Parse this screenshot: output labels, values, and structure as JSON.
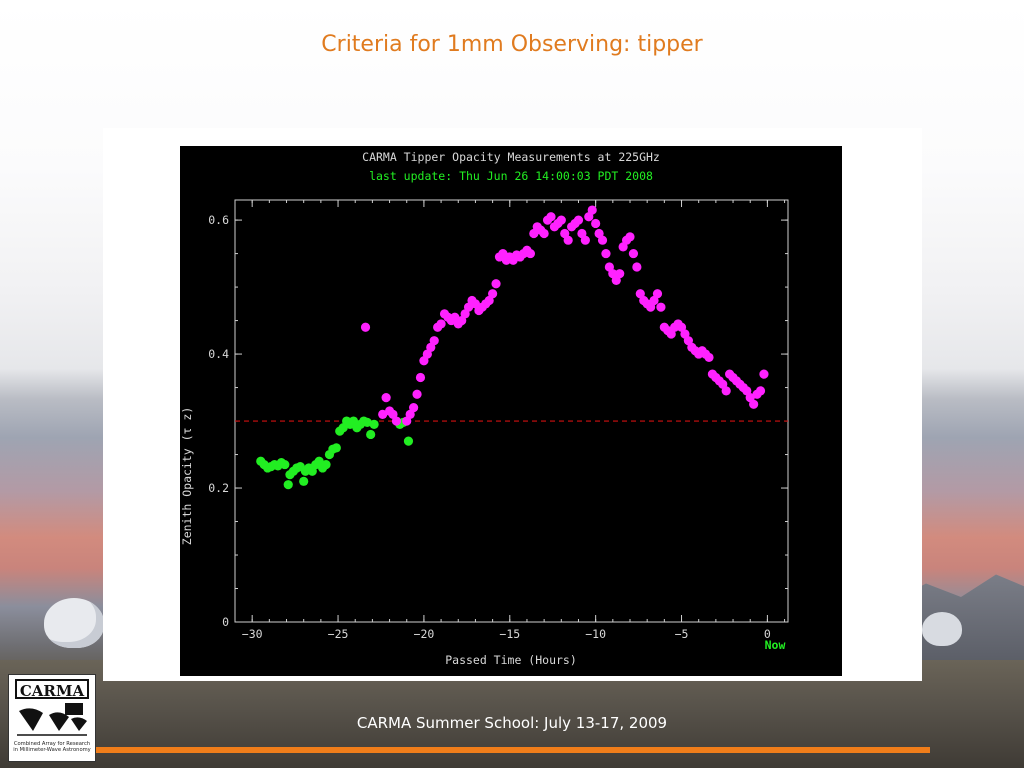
{
  "slide": {
    "title": "Criteria for 1mm Observing: tipper",
    "footer": "CARMA Summer School: July 13-17, 2009",
    "logo": {
      "name": "CARMA",
      "caption": "Combined Array for Research in Millimeter-Wave Astronomy"
    },
    "colors": {
      "title": "#e07b1f",
      "footer_line": "#f07d1a"
    }
  },
  "chart_data": {
    "type": "scatter",
    "title": "CARMA Tipper Opacity Measurements at 225GHz",
    "subtitle": "last update: Thu Jun 26 14:00:03 PDT 2008",
    "xlabel": "Passed Time (Hours)",
    "ylabel": "Zenith Opacity (τ z)",
    "xlim": [
      -31,
      1.2
    ],
    "ylim": [
      0,
      0.63
    ],
    "xticks": [
      -30,
      -25,
      -20,
      -15,
      -10,
      -5,
      0
    ],
    "xtick_labels": [
      "−30",
      "−25",
      "−20",
      "−15",
      "−10",
      "−5",
      "0"
    ],
    "yticks": [
      0,
      0.2,
      0.4,
      0.6
    ],
    "ytick_labels": [
      "0",
      "0.2",
      "0.4",
      "0.6"
    ],
    "now_label": "Now",
    "threshold": {
      "value": 0.3,
      "color": "#d01010",
      "style": "dashed"
    },
    "background": "#000000",
    "series": [
      {
        "color": "#22ee22",
        "points": [
          [
            -29.5,
            0.24
          ],
          [
            -29.3,
            0.235
          ],
          [
            -29.1,
            0.23
          ],
          [
            -28.9,
            0.232
          ],
          [
            -28.7,
            0.235
          ],
          [
            -28.5,
            0.233
          ],
          [
            -28.3,
            0.238
          ],
          [
            -28.1,
            0.235
          ],
          [
            -27.9,
            0.205
          ],
          [
            -27.8,
            0.22
          ],
          [
            -27.6,
            0.225
          ],
          [
            -27.4,
            0.23
          ],
          [
            -27.2,
            0.232
          ],
          [
            -27.0,
            0.21
          ],
          [
            -26.9,
            0.225
          ],
          [
            -26.7,
            0.23
          ],
          [
            -26.5,
            0.225
          ],
          [
            -26.3,
            0.235
          ],
          [
            -26.1,
            0.24
          ],
          [
            -25.9,
            0.23
          ],
          [
            -25.7,
            0.235
          ],
          [
            -25.5,
            0.25
          ],
          [
            -25.3,
            0.258
          ],
          [
            -25.1,
            0.26
          ],
          [
            -24.9,
            0.285
          ],
          [
            -24.7,
            0.29
          ],
          [
            -24.5,
            0.3
          ],
          [
            -24.3,
            0.295
          ],
          [
            -24.1,
            0.3
          ],
          [
            -23.9,
            0.29
          ],
          [
            -23.7,
            0.295
          ],
          [
            -23.5,
            0.3
          ],
          [
            -23.3,
            0.298
          ],
          [
            -23.1,
            0.28
          ],
          [
            -22.9,
            0.295
          ],
          [
            -21.4,
            0.295
          ],
          [
            -21.2,
            0.298
          ],
          [
            -20.9,
            0.27
          ]
        ]
      },
      {
        "color": "#ff22ff",
        "points": [
          [
            -23.4,
            0.44
          ],
          [
            -22.4,
            0.31
          ],
          [
            -22.2,
            0.335
          ],
          [
            -22.0,
            0.315
          ],
          [
            -21.8,
            0.31
          ],
          [
            -21.6,
            0.3
          ],
          [
            -21.0,
            0.3
          ],
          [
            -20.8,
            0.31
          ],
          [
            -20.6,
            0.32
          ],
          [
            -20.4,
            0.34
          ],
          [
            -20.2,
            0.365
          ],
          [
            -20.0,
            0.39
          ],
          [
            -19.8,
            0.4
          ],
          [
            -19.6,
            0.41
          ],
          [
            -19.4,
            0.42
          ],
          [
            -19.2,
            0.44
          ],
          [
            -19.0,
            0.445
          ],
          [
            -18.8,
            0.46
          ],
          [
            -18.6,
            0.455
          ],
          [
            -18.4,
            0.45
          ],
          [
            -18.2,
            0.455
          ],
          [
            -18.0,
            0.445
          ],
          [
            -17.8,
            0.45
          ],
          [
            -17.6,
            0.46
          ],
          [
            -17.4,
            0.47
          ],
          [
            -17.2,
            0.48
          ],
          [
            -17.0,
            0.475
          ],
          [
            -16.8,
            0.465
          ],
          [
            -16.6,
            0.47
          ],
          [
            -16.4,
            0.475
          ],
          [
            -16.2,
            0.48
          ],
          [
            -16.0,
            0.49
          ],
          [
            -15.8,
            0.505
          ],
          [
            -15.6,
            0.545
          ],
          [
            -15.4,
            0.55
          ],
          [
            -15.2,
            0.54
          ],
          [
            -15.0,
            0.545
          ],
          [
            -14.8,
            0.54
          ],
          [
            -14.6,
            0.548
          ],
          [
            -14.4,
            0.545
          ],
          [
            -14.2,
            0.55
          ],
          [
            -14.0,
            0.555
          ],
          [
            -13.8,
            0.55
          ],
          [
            -13.6,
            0.58
          ],
          [
            -13.4,
            0.59
          ],
          [
            -13.2,
            0.585
          ],
          [
            -13.0,
            0.58
          ],
          [
            -12.8,
            0.6
          ],
          [
            -12.6,
            0.605
          ],
          [
            -12.4,
            0.59
          ],
          [
            -12.2,
            0.595
          ],
          [
            -12.0,
            0.6
          ],
          [
            -11.8,
            0.58
          ],
          [
            -11.6,
            0.57
          ],
          [
            -11.4,
            0.59
          ],
          [
            -11.2,
            0.595
          ],
          [
            -11.0,
            0.6
          ],
          [
            -10.8,
            0.58
          ],
          [
            -10.6,
            0.57
          ],
          [
            -10.4,
            0.605
          ],
          [
            -10.2,
            0.615
          ],
          [
            -10.0,
            0.595
          ],
          [
            -9.8,
            0.58
          ],
          [
            -9.6,
            0.57
          ],
          [
            -9.4,
            0.55
          ],
          [
            -9.2,
            0.53
          ],
          [
            -9.0,
            0.52
          ],
          [
            -8.8,
            0.51
          ],
          [
            -8.6,
            0.52
          ],
          [
            -8.4,
            0.56
          ],
          [
            -8.2,
            0.57
          ],
          [
            -8.0,
            0.575
          ],
          [
            -7.8,
            0.55
          ],
          [
            -7.6,
            0.53
          ],
          [
            -7.4,
            0.49
          ],
          [
            -7.2,
            0.48
          ],
          [
            -7.0,
            0.475
          ],
          [
            -6.8,
            0.47
          ],
          [
            -6.6,
            0.48
          ],
          [
            -6.4,
            0.49
          ],
          [
            -6.2,
            0.47
          ],
          [
            -6.0,
            0.44
          ],
          [
            -5.8,
            0.435
          ],
          [
            -5.6,
            0.43
          ],
          [
            -5.4,
            0.44
          ],
          [
            -5.2,
            0.445
          ],
          [
            -5.0,
            0.44
          ],
          [
            -4.8,
            0.43
          ],
          [
            -4.6,
            0.42
          ],
          [
            -4.4,
            0.41
          ],
          [
            -4.2,
            0.405
          ],
          [
            -4.0,
            0.4
          ],
          [
            -3.8,
            0.405
          ],
          [
            -3.6,
            0.4
          ],
          [
            -3.4,
            0.395
          ],
          [
            -3.2,
            0.37
          ],
          [
            -3.0,
            0.365
          ],
          [
            -2.8,
            0.36
          ],
          [
            -2.6,
            0.355
          ],
          [
            -2.4,
            0.345
          ],
          [
            -2.2,
            0.37
          ],
          [
            -2.0,
            0.365
          ],
          [
            -1.8,
            0.36
          ],
          [
            -1.6,
            0.355
          ],
          [
            -1.4,
            0.35
          ],
          [
            -1.2,
            0.345
          ],
          [
            -1.0,
            0.335
          ],
          [
            -0.8,
            0.325
          ],
          [
            -0.6,
            0.34
          ],
          [
            -0.4,
            0.345
          ],
          [
            -0.2,
            0.37
          ]
        ]
      }
    ]
  }
}
